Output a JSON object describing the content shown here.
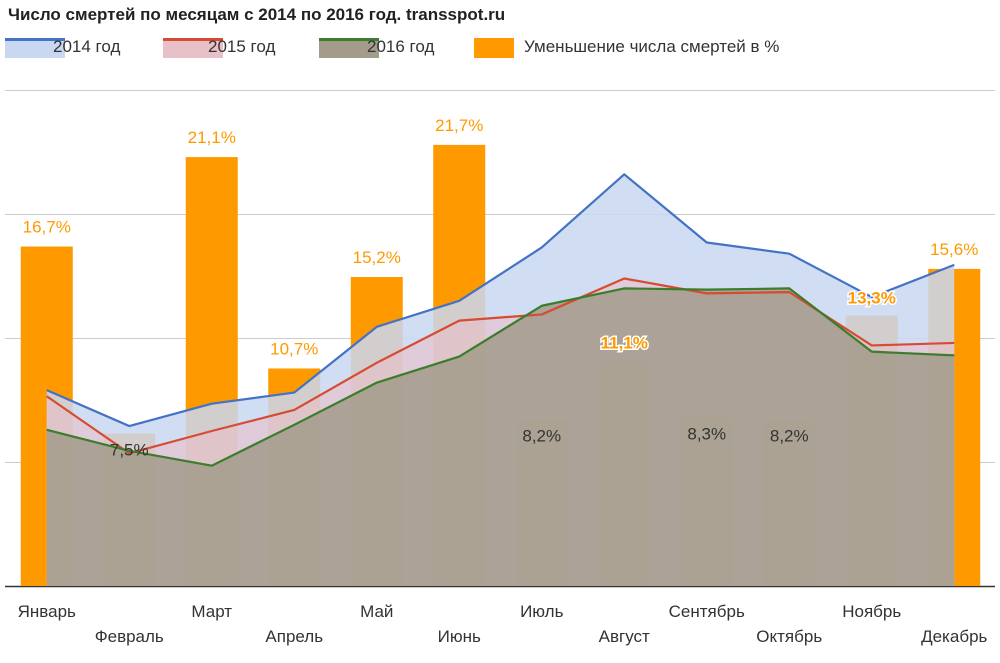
{
  "chart_data": {
    "type": "bar",
    "title": "Число смертей по месяцам с 2014 по 2016 год. transspot.ru",
    "categories": [
      "Январь",
      "Февраль",
      "Март",
      "Апрель",
      "Май",
      "Июнь",
      "Июль",
      "Август",
      "Сентябрь",
      "Октябрь",
      "Ноябрь",
      "Декабрь"
    ],
    "series": [
      {
        "name": "2014 год",
        "kind": "area",
        "color": "#4472c4",
        "fill": "#c9d7f1",
        "values": [
          2.58,
          2.29,
          2.47,
          2.56,
          3.09,
          3.3,
          3.73,
          4.32,
          3.77,
          3.68,
          3.33,
          3.59
        ]
      },
      {
        "name": "2015 год",
        "kind": "area",
        "color": "#d64b32",
        "fill": "#e8c0c8",
        "values": [
          2.53,
          2.07,
          2.25,
          2.42,
          2.8,
          3.14,
          3.19,
          3.48,
          3.36,
          3.37,
          2.94,
          2.96
        ]
      },
      {
        "name": "2016 год",
        "kind": "area",
        "color": "#3a7d2a",
        "fill": "#a39b8b",
        "values": [
          2.26,
          2.09,
          1.97,
          2.3,
          2.64,
          2.85,
          3.26,
          3.4,
          3.39,
          3.4,
          2.89,
          2.86
        ]
      },
      {
        "name": "Уменьшение числа смертей в %",
        "kind": "bar",
        "color": "#ff9900",
        "values": [
          16.7,
          7.5,
          21.1,
          10.7,
          15.2,
          21.7,
          8.2,
          11.1,
          8.3,
          8.2,
          13.3,
          15.6
        ],
        "labels": [
          "16,7%",
          "7,5%",
          "21,1%",
          "10,7%",
          "15,2%",
          "21,7%",
          "8,2%",
          "11,1%",
          "8,3%",
          "8,2%",
          "13,3%",
          "15,6%"
        ]
      }
    ],
    "ylim_lines": [
      1.0,
      5.0
    ],
    "ylim_bars": [
      0,
      24.4
    ],
    "gridlines": [
      1.0,
      2.0,
      3.0,
      4.0,
      5.0
    ],
    "legend_position": "top",
    "xlabel": "",
    "ylabel": ""
  }
}
